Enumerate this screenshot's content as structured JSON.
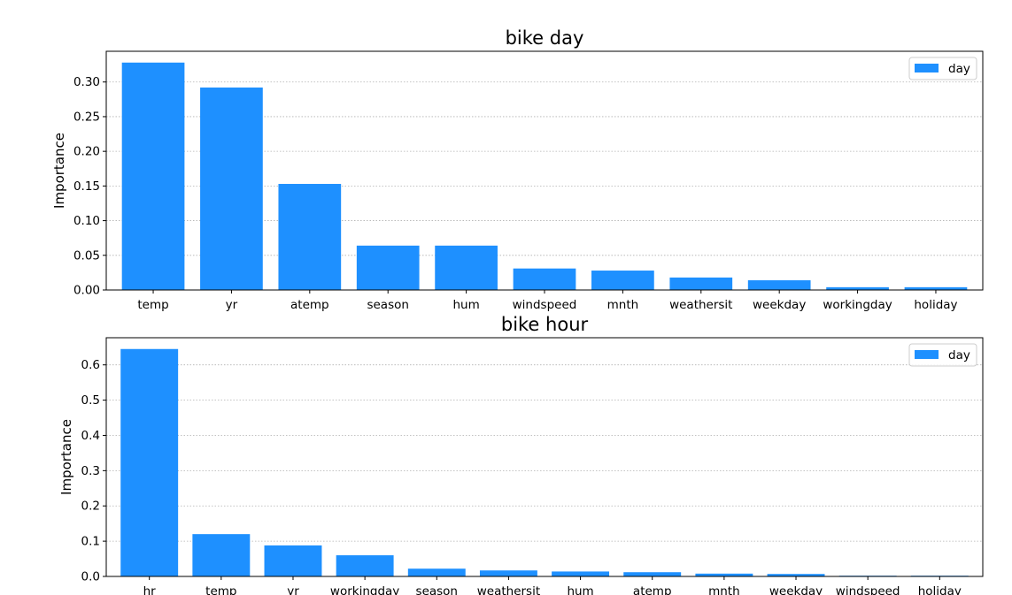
{
  "chart_data": [
    {
      "type": "bar",
      "title": "bike day",
      "xlabel": "",
      "ylabel": "Importance",
      "categories": [
        "temp",
        "yr",
        "atemp",
        "season",
        "hum",
        "windspeed",
        "mnth",
        "weathersit",
        "weekday",
        "workingday",
        "holiday"
      ],
      "series": [
        {
          "name": "day",
          "color": "#1e90ff",
          "values": [
            0.328,
            0.292,
            0.153,
            0.064,
            0.064,
            0.031,
            0.028,
            0.018,
            0.014,
            0.004,
            0.004
          ]
        }
      ],
      "ylim": [
        0,
        0.3443
      ],
      "yticks": [
        0.0,
        0.05,
        0.1,
        0.15,
        0.2,
        0.25,
        0.3
      ],
      "ytick_labels": [
        "0.00",
        "0.05",
        "0.10",
        "0.15",
        "0.20",
        "0.25",
        "0.30"
      ],
      "grid": "horizontal-dotted",
      "legend": "top-right"
    },
    {
      "type": "bar",
      "title": "bike hour",
      "xlabel": "",
      "ylabel": "Importance",
      "categories": [
        "hr",
        "temp",
        "yr",
        "workingday",
        "season",
        "weathersit",
        "hum",
        "atemp",
        "mnth",
        "weekday",
        "windspeed",
        "holiday"
      ],
      "series": [
        {
          "name": "day",
          "color": "#1e90ff",
          "values": [
            0.645,
            0.12,
            0.088,
            0.06,
            0.022,
            0.017,
            0.014,
            0.012,
            0.008,
            0.007,
            0.002,
            0.002
          ]
        }
      ],
      "ylim": [
        0,
        0.677
      ],
      "yticks": [
        0.0,
        0.1,
        0.2,
        0.3,
        0.4,
        0.5,
        0.6
      ],
      "ytick_labels": [
        "0.0",
        "0.1",
        "0.2",
        "0.3",
        "0.4",
        "0.5",
        "0.6"
      ],
      "grid": "horizontal-dotted",
      "legend": "top-right"
    }
  ]
}
